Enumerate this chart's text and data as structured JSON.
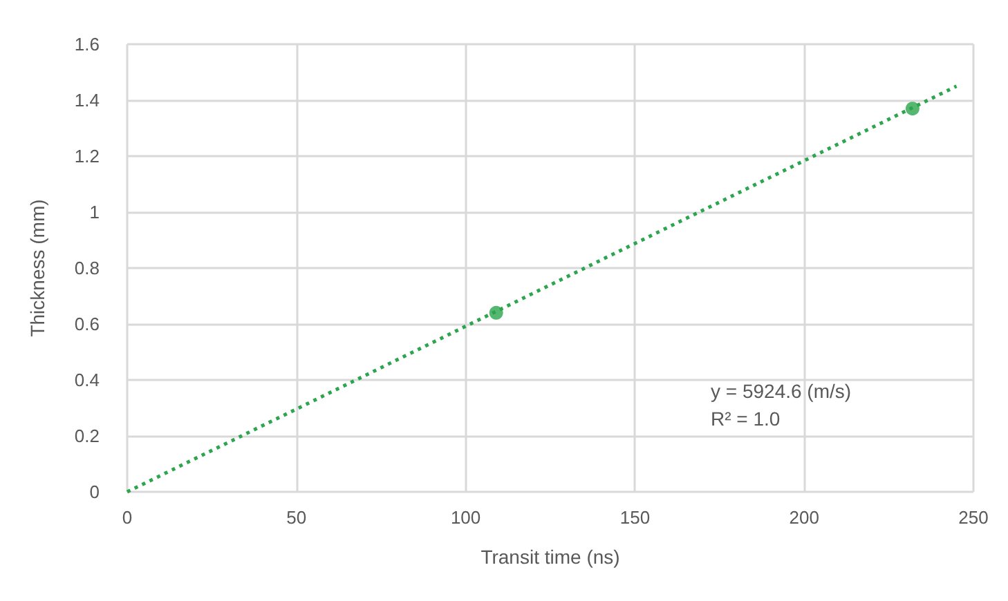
{
  "chart_data": {
    "type": "scatter",
    "xlabel": "Transit time (ns)",
    "ylabel": "Thickness (mm)",
    "series": [
      {
        "color": "#2ca54e",
        "x": [
          109,
          232
        ],
        "values": [
          0.64,
          1.37
        ],
        "marker": "circle"
      },
      {
        "type": "line",
        "color": "#2ca54e",
        "x": [
          0,
          245
        ],
        "values": [
          0,
          1.45
        ],
        "marker": "none",
        "line_style": "dotted"
      }
    ],
    "annotations": [
      "y = 5924.6 (m/s)",
      "R² = 1.0"
    ],
    "xlim": [
      0,
      250
    ],
    "xticks": [
      0,
      50,
      100,
      150,
      200,
      250
    ],
    "ylim": [
      0,
      1.6
    ],
    "yticks": [
      0,
      0.2,
      0.4,
      0.6,
      0.8,
      1,
      1.2,
      1.4,
      1.6
    ],
    "grid": true
  }
}
